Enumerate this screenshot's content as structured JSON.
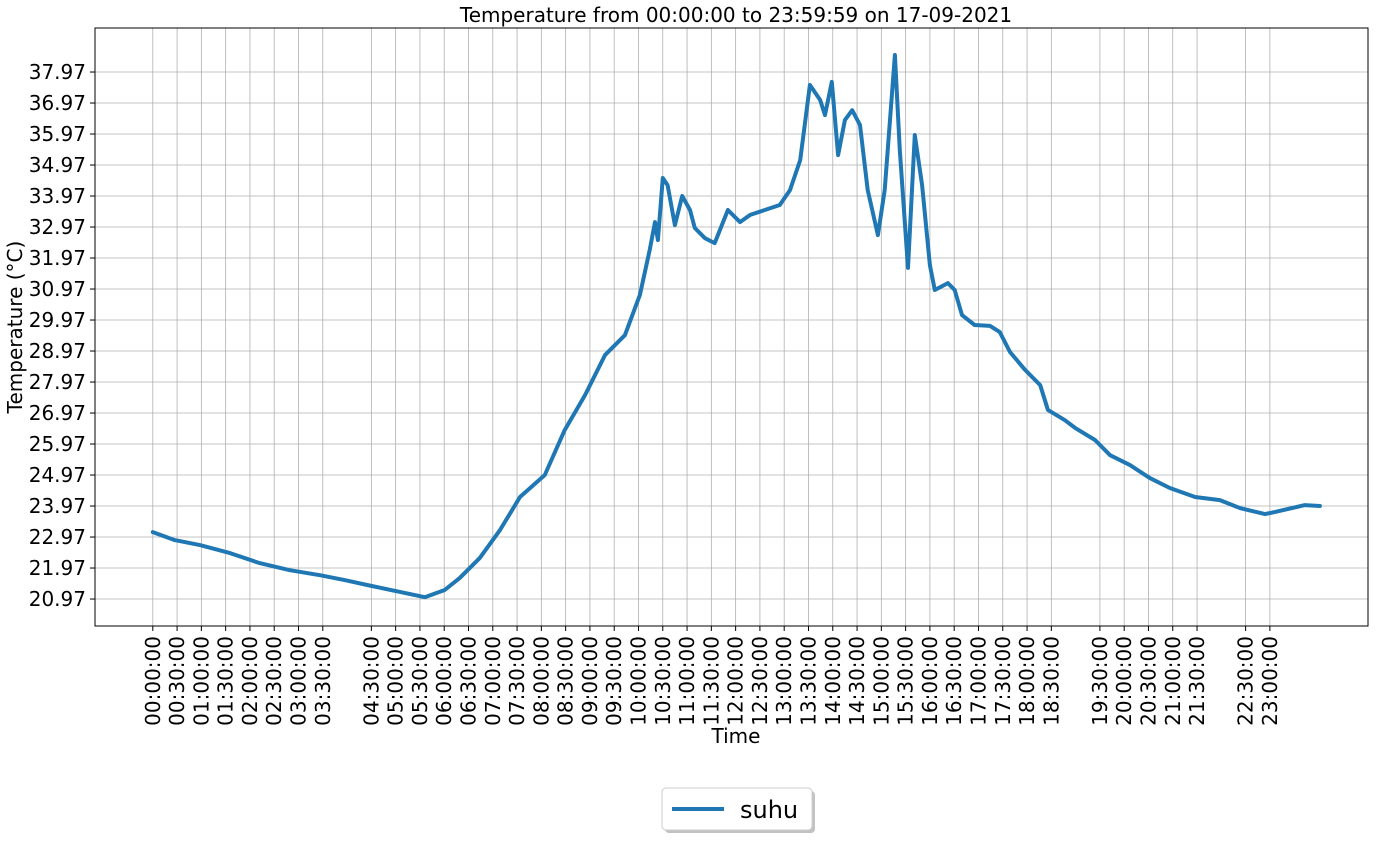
{
  "chart_data": {
    "type": "line",
    "title": "Temperature from 00:00:00 to 23:59:59 on 17-09-2021",
    "x_label": "Time",
    "y_label": "Temperature (°C)",
    "x": [
      0,
      0.45,
      0.97,
      1.59,
      2.2,
      2.82,
      3.44,
      3.95,
      4.51,
      5.09,
      5.6,
      6.01,
      6.32,
      6.73,
      7.15,
      7.56,
      8.07,
      8.48,
      8.9,
      9.31,
      9.72,
      10.03,
      10.23,
      10.34,
      10.4,
      10.5,
      10.6,
      10.75,
      10.9,
      11.06,
      11.16,
      11.37,
      11.57,
      11.84,
      12.09,
      12.3,
      12.6,
      12.91,
      13.12,
      13.33,
      13.53,
      13.74,
      13.84,
      13.98,
      14.11,
      14.25,
      14.4,
      14.56,
      14.72,
      14.93,
      15.07,
      15.28,
      15.38,
      15.55,
      15.69,
      15.84,
      16.0,
      16.1,
      16.37,
      16.51,
      16.66,
      16.92,
      17.24,
      17.44,
      17.65,
      17.96,
      18.27,
      18.43,
      18.78,
      18.99,
      19.4,
      19.71,
      20.12,
      20.53,
      20.94,
      21.46,
      21.97,
      22.39,
      22.9,
      23.11,
      23.72,
      24.03
    ],
    "series": [
      {
        "name": "suhu",
        "color": "#1f77b4",
        "values": [
          23.13,
          22.87,
          22.71,
          22.45,
          22.13,
          21.9,
          21.74,
          21.58,
          21.39,
          21.2,
          21.03,
          21.26,
          21.65,
          22.29,
          23.2,
          24.26,
          24.97,
          26.42,
          27.55,
          28.84,
          29.48,
          30.78,
          32.23,
          33.13,
          32.55,
          34.55,
          34.32,
          33.03,
          33.97,
          33.52,
          32.94,
          32.61,
          32.45,
          33.52,
          33.13,
          33.36,
          33.52,
          33.68,
          34.16,
          35.13,
          37.55,
          37.07,
          36.58,
          37.65,
          35.29,
          36.42,
          36.74,
          36.26,
          34.16,
          32.71,
          34.16,
          38.52,
          35.45,
          31.65,
          35.94,
          34.32,
          31.74,
          30.94,
          31.16,
          30.94,
          30.13,
          29.81,
          29.78,
          29.58,
          28.94,
          28.36,
          27.87,
          27.07,
          26.74,
          26.49,
          26.1,
          25.61,
          25.29,
          24.87,
          24.55,
          24.26,
          24.16,
          23.9,
          23.71,
          23.78,
          24.0,
          23.97
        ]
      }
    ],
    "xlim": [
      -1.19,
      25.02
    ],
    "ylim": [
      20.1,
      39.39
    ],
    "xticks": [
      {
        "value": 0,
        "label": "00:00:00"
      },
      {
        "value": 0.5,
        "label": "00:30:00"
      },
      {
        "value": 1,
        "label": "01:00:00"
      },
      {
        "value": 1.5,
        "label": "01:30:00"
      },
      {
        "value": 2,
        "label": "02:00:00"
      },
      {
        "value": 2.5,
        "label": "02:30:00"
      },
      {
        "value": 3,
        "label": "03:00:00"
      },
      {
        "value": 3.5,
        "label": "03:30:00"
      },
      {
        "value": 4.5,
        "label": "04:30:00"
      },
      {
        "value": 5,
        "label": "05:00:00"
      },
      {
        "value": 5.5,
        "label": "05:30:00"
      },
      {
        "value": 6,
        "label": "06:00:00"
      },
      {
        "value": 6.5,
        "label": "06:30:00"
      },
      {
        "value": 7,
        "label": "07:00:00"
      },
      {
        "value": 7.5,
        "label": "07:30:00"
      },
      {
        "value": 8,
        "label": "08:00:00"
      },
      {
        "value": 8.5,
        "label": "08:30:00"
      },
      {
        "value": 9,
        "label": "09:00:00"
      },
      {
        "value": 9.5,
        "label": "09:30:00"
      },
      {
        "value": 10,
        "label": "10:00:00"
      },
      {
        "value": 10.5,
        "label": "10:30:00"
      },
      {
        "value": 11,
        "label": "11:00:00"
      },
      {
        "value": 11.5,
        "label": "11:30:00"
      },
      {
        "value": 12,
        "label": "12:00:00"
      },
      {
        "value": 12.5,
        "label": "12:30:00"
      },
      {
        "value": 13,
        "label": "13:00:00"
      },
      {
        "value": 13.5,
        "label": "13:30:00"
      },
      {
        "value": 14,
        "label": "14:00:00"
      },
      {
        "value": 14.5,
        "label": "14:30:00"
      },
      {
        "value": 15,
        "label": "15:00:00"
      },
      {
        "value": 15.5,
        "label": "15:30:00"
      },
      {
        "value": 16,
        "label": "16:00:00"
      },
      {
        "value": 16.5,
        "label": "16:30:00"
      },
      {
        "value": 17,
        "label": "17:00:00"
      },
      {
        "value": 17.5,
        "label": "17:30:00"
      },
      {
        "value": 18,
        "label": "18:00:00"
      },
      {
        "value": 18.5,
        "label": "18:30:00"
      },
      {
        "value": 19.5,
        "label": "19:30:00"
      },
      {
        "value": 20,
        "label": "20:00:00"
      },
      {
        "value": 20.5,
        "label": "20:30:00"
      },
      {
        "value": 21,
        "label": "21:00:00"
      },
      {
        "value": 21.5,
        "label": "21:30:00"
      },
      {
        "value": 22.5,
        "label": "22:30:00"
      },
      {
        "value": 23,
        "label": "23:00:00"
      }
    ],
    "yticks": [
      20.97,
      21.97,
      22.97,
      23.97,
      24.97,
      25.97,
      26.97,
      27.97,
      28.97,
      29.97,
      30.97,
      31.97,
      32.97,
      33.97,
      34.97,
      35.97,
      36.97,
      37.97
    ],
    "grid": true,
    "legend": "bottom"
  }
}
